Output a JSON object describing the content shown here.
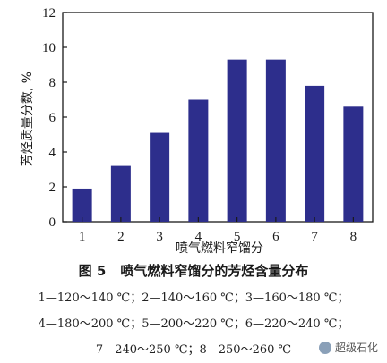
{
  "chart_data": {
    "type": "bar",
    "categories": [
      "1",
      "2",
      "3",
      "4",
      "5",
      "6",
      "7",
      "8"
    ],
    "values": [
      1.9,
      3.2,
      5.1,
      7.0,
      9.3,
      9.3,
      7.8,
      6.6
    ],
    "xlabel": "喷气燃料窄馏分",
    "ylabel": "芳烃质量分数, %",
    "ylim": [
      0,
      12
    ],
    "yticks": [
      "0",
      "2",
      "4",
      "6",
      "8",
      "10",
      "12"
    ],
    "bar_color": "#2d2e8c",
    "grid": false
  },
  "caption": {
    "fig_number": "图 5",
    "title": "喷气燃料窄馏分的芳烃含量分布"
  },
  "legend_lines": [
    "1—120～140 ℃；2—140～160 ℃；3—160～180 ℃；",
    "4—180～200 ℃；5—200～220 ℃；6—220～240 ℃；",
    "7—240～250 ℃；8—250～260 ℃"
  ],
  "watermark": "超级石化"
}
